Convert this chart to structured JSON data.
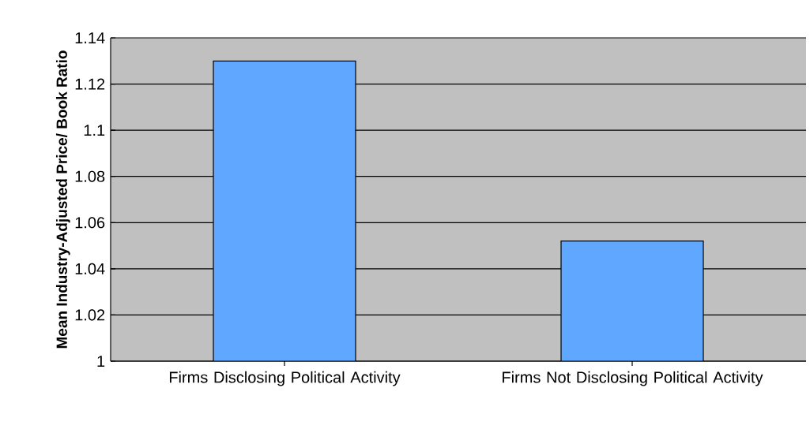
{
  "chart_data": {
    "type": "bar",
    "ylabel": "Mean Industry-Adjusted Price/ Book Ratio",
    "categories": [
      "Firms Disclosing Political Activity",
      "Firms Not Disclosing Political Activity"
    ],
    "values": [
      1.13,
      1.052
    ],
    "color": "#60a8ff",
    "ylim": [
      1,
      1.14
    ],
    "yticks": [
      1,
      1.02,
      1.04,
      1.06,
      1.08,
      1.1,
      1.12,
      1.14
    ],
    "grid": "y"
  }
}
